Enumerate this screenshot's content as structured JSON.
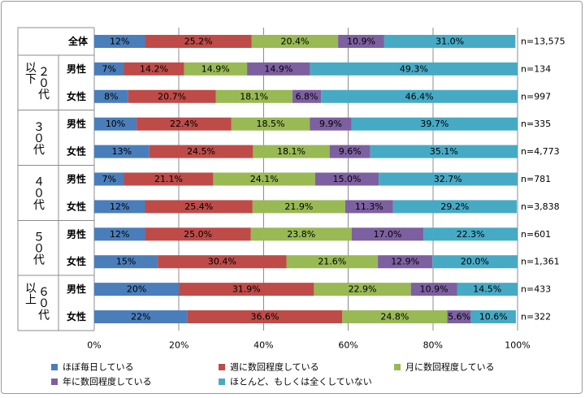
{
  "chart_data": {
    "type": "bar",
    "stacked": "percent",
    "orientation": "horizontal",
    "title": "",
    "xlabel": "",
    "ylabel": "",
    "xlim": [
      0,
      100
    ],
    "x_ticks": [
      "0%",
      "20%",
      "40%",
      "60%",
      "80%",
      "100%"
    ],
    "grid": true,
    "legend_position": "bottom",
    "groups": [
      "全体",
      "２０代以下",
      "３０代",
      "４０代",
      "５０代",
      "６０代以上"
    ],
    "categories": [
      "全体",
      "男性",
      "女性",
      "男性",
      "女性",
      "男性",
      "女性",
      "男性",
      "女性",
      "男性",
      "女性"
    ],
    "row_group_index": [
      0,
      1,
      1,
      2,
      2,
      3,
      3,
      4,
      4,
      5,
      5
    ],
    "n_labels": [
      "n=13,575",
      "n=134",
      "n=997",
      "n=335",
      "n=4,773",
      "n=781",
      "n=3,838",
      "n=601",
      "n=1,361",
      "n=433",
      "n=322"
    ],
    "series": [
      {
        "name": "ほぼ毎日している",
        "color": "#4a7ebb",
        "values": [
          12,
          7,
          8,
          10,
          13,
          7,
          12,
          12,
          15,
          20,
          22
        ],
        "labels": [
          "12%",
          "7%",
          "8%",
          "10%",
          "13%",
          "7%",
          "12%",
          "12%",
          "15%",
          "20%",
          "22%"
        ]
      },
      {
        "name": "週に数回程度している",
        "color": "#be4b48",
        "values": [
          25.2,
          14.2,
          20.7,
          22.4,
          24.5,
          21.1,
          25.4,
          25.0,
          30.4,
          31.9,
          36.6
        ],
        "labels": [
          "25.2%",
          "14.2%",
          "20.7%",
          "22.4%",
          "24.5%",
          "21.1%",
          "25.4%",
          "25.0%",
          "30.4%",
          "31.9%",
          "36.6%"
        ]
      },
      {
        "name": "月に数回程度している",
        "color": "#98b954",
        "values": [
          20.4,
          14.9,
          18.1,
          18.5,
          18.1,
          24.1,
          21.9,
          23.8,
          21.6,
          22.9,
          24.8
        ],
        "labels": [
          "20.4%",
          "14.9%",
          "18.1%",
          "18.5%",
          "18.1%",
          "24.1%",
          "21.9%",
          "23.8%",
          "21.6%",
          "22.9%",
          "24.8%"
        ]
      },
      {
        "name": "年に数回程度している",
        "color": "#7d60a0",
        "values": [
          10.9,
          14.9,
          6.8,
          9.9,
          9.6,
          15.0,
          11.3,
          17.0,
          12.9,
          10.9,
          5.6
        ],
        "labels": [
          "10.9%",
          "14.9%",
          "6.8%",
          "9.9%",
          "9.6%",
          "15.0%",
          "11.3%",
          "17.0%",
          "12.9%",
          "10.9%",
          "5.6%"
        ]
      },
      {
        "name": "ほとんど、もしくは全くしていない",
        "color": "#46aac5",
        "values": [
          31.0,
          49.3,
          46.4,
          39.7,
          35.1,
          32.7,
          29.2,
          22.3,
          20.0,
          14.5,
          10.6
        ],
        "labels": [
          "31.0%",
          "49.3%",
          "46.4%",
          "39.7%",
          "35.1%",
          "32.7%",
          "29.2%",
          "22.3%",
          "20.0%",
          "14.5%",
          "10.6%"
        ]
      }
    ]
  }
}
